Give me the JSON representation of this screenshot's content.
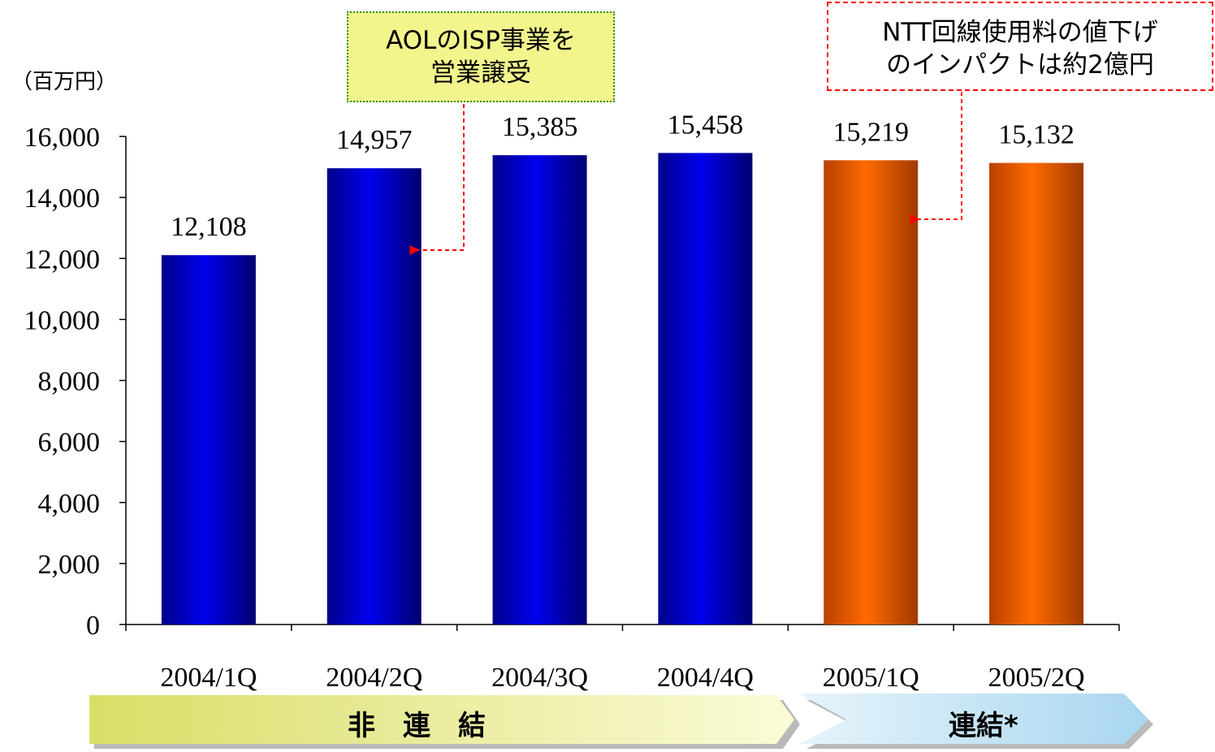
{
  "unit_label": "（百万円）",
  "callouts": {
    "aol": [
      "AOLのISP事業を",
      "営業譲受"
    ],
    "ntt": [
      "NTT回線使用料の値下げ",
      "のインパクトは約2億円"
    ]
  },
  "bands": {
    "non_consolidated": "非　連　結",
    "consolidated": "連結*"
  },
  "colors": {
    "blue_bar": "#0000dd",
    "orange_bar": "#ff6600",
    "band_yellow": "#f4f6a8",
    "band_blue": "#c6e6f6",
    "callout_red": "#ff0000"
  },
  "chart_data": {
    "type": "bar",
    "categories": [
      "2004/1Q",
      "2004/2Q",
      "2004/3Q",
      "2004/4Q",
      "2005/1Q",
      "2005/2Q"
    ],
    "values": [
      12108,
      14957,
      15385,
      15458,
      15219,
      15132
    ],
    "value_labels": [
      "12,108",
      "14,957",
      "15,385",
      "15,458",
      "15,219",
      "15,132"
    ],
    "bar_colors": [
      "blue",
      "blue",
      "blue",
      "blue",
      "orange",
      "orange"
    ],
    "ylim": [
      0,
      16000
    ],
    "yticks": [
      0,
      2000,
      4000,
      6000,
      8000,
      10000,
      12000,
      14000,
      16000
    ],
    "ytick_labels": [
      "0",
      "2,000",
      "4,000",
      "6,000",
      "8,000",
      "10,000",
      "12,000",
      "14,000",
      "16,000"
    ],
    "title": "",
    "xlabel": "",
    "ylabel": "",
    "grid": false
  }
}
